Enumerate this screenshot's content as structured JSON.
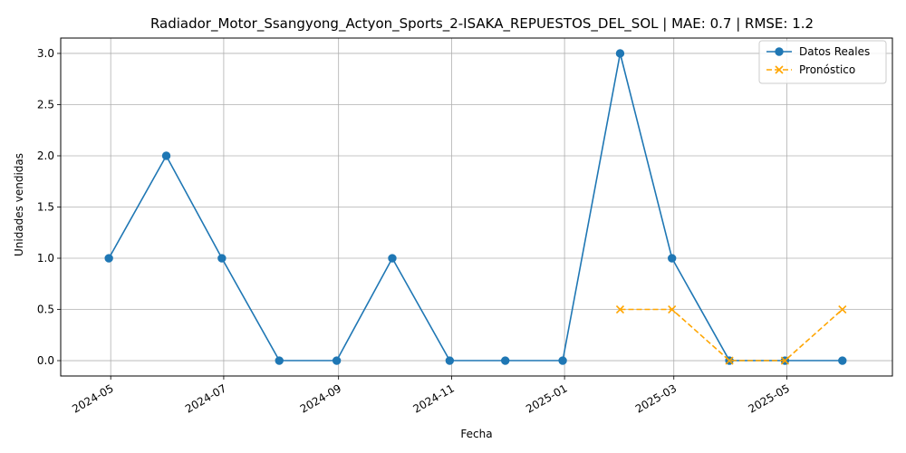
{
  "chart_data": {
    "type": "line",
    "title": "Radiador_Motor_Ssangyong_Actyon_Sports_2-ISAKA_REPUESTOS_DEL_SOL | MAE: 0.7 | RMSE: 1.2",
    "xlabel": "Fecha",
    "ylabel": "Unidades vendidas",
    "x_tick_labels": [
      "2024-05",
      "2024-07",
      "2024-09",
      "2024-11",
      "2025-01",
      "2025-03",
      "2025-05"
    ],
    "x_ticks": [
      "2024-05-01",
      "2024-07-01",
      "2024-09-01",
      "2024-11-01",
      "2025-01-01",
      "2025-03-01",
      "2025-05-01"
    ],
    "y_tick_labels": [
      "0.0",
      "0.5",
      "1.0",
      "1.5",
      "2.0",
      "2.5",
      "3.0"
    ],
    "y_ticks": [
      0,
      0.5,
      1,
      1.5,
      2,
      2.5,
      3
    ],
    "xlim": [
      "2024-04-04",
      "2025-06-27"
    ],
    "ylim": [
      -0.15,
      3.15
    ],
    "grid": true,
    "legend_position": "top-right",
    "series": [
      {
        "name": "Datos Reales",
        "color": "#1f77b4",
        "marker": "circle",
        "linestyle": "solid",
        "x": [
          "2024-04-30",
          "2024-05-31",
          "2024-06-30",
          "2024-07-31",
          "2024-08-31",
          "2024-09-30",
          "2024-10-31",
          "2024-11-30",
          "2024-12-31",
          "2025-01-31",
          "2025-02-28",
          "2025-03-31",
          "2025-04-30",
          "2025-05-31"
        ],
        "values": [
          1,
          2,
          1,
          0,
          0,
          1,
          0,
          0,
          0,
          3,
          1,
          0,
          0,
          0
        ]
      },
      {
        "name": "Pronóstico",
        "color": "#ffa500",
        "marker": "x",
        "linestyle": "dashed",
        "x": [
          "2025-01-31",
          "2025-02-28",
          "2025-03-31",
          "2025-04-30",
          "2025-05-31"
        ],
        "values": [
          0.5,
          0.5,
          0,
          0,
          0.5
        ]
      }
    ]
  }
}
